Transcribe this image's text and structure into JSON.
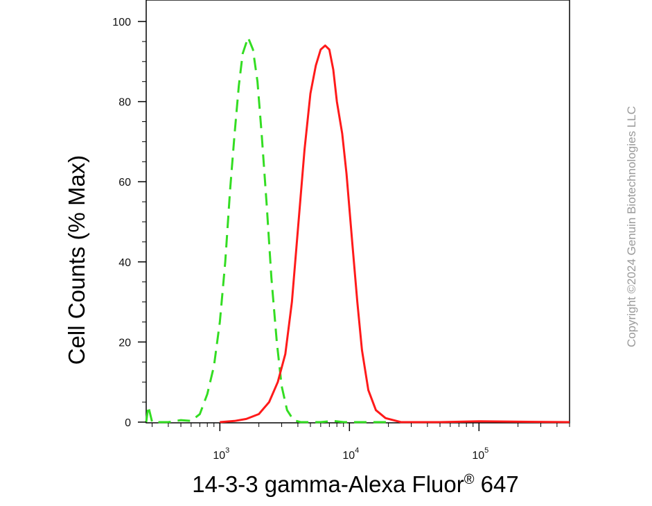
{
  "chart_data": {
    "type": "line",
    "title": "",
    "ylabel": "Cell Counts (% Max)",
    "xlabel_main": "14-3-3 gamma-Alexa Fluor",
    "xlabel_sup": "®",
    "xlabel_tail": " 647",
    "x_scale": "log",
    "xlim": [
      270,
      500000
    ],
    "ylim": [
      0,
      105
    ],
    "y_ticks": [
      0,
      20,
      40,
      60,
      80,
      100
    ],
    "x_ticks": [
      {
        "value": 1000,
        "base": "10",
        "exp": "3"
      },
      {
        "value": 10000,
        "base": "10",
        "exp": "4"
      },
      {
        "value": 100000,
        "base": "10",
        "exp": "5"
      }
    ],
    "grid": false,
    "legend": "none",
    "series": [
      {
        "color": "#33dd22",
        "dash": true,
        "points": [
          [
            270,
            0
          ],
          [
            280,
            4
          ],
          [
            300,
            0
          ],
          [
            400,
            0
          ],
          [
            500,
            0.5
          ],
          [
            600,
            0.3
          ],
          [
            700,
            2
          ],
          [
            800,
            7
          ],
          [
            900,
            14
          ],
          [
            1000,
            25
          ],
          [
            1100,
            40
          ],
          [
            1200,
            58
          ],
          [
            1300,
            72
          ],
          [
            1400,
            84
          ],
          [
            1500,
            92
          ],
          [
            1650,
            96
          ],
          [
            1800,
            93
          ],
          [
            1950,
            85
          ],
          [
            2100,
            72
          ],
          [
            2300,
            54
          ],
          [
            2500,
            36
          ],
          [
            2750,
            20
          ],
          [
            3000,
            9
          ],
          [
            3300,
            3
          ],
          [
            3700,
            0.5
          ],
          [
            4200,
            0
          ],
          [
            6000,
            0
          ],
          [
            7500,
            0.3
          ],
          [
            9000,
            0
          ],
          [
            20000,
            0
          ]
        ]
      },
      {
        "color": "#ff1a1a",
        "dash": false,
        "points": [
          [
            1000,
            0
          ],
          [
            1300,
            0.3
          ],
          [
            1600,
            0.8
          ],
          [
            2000,
            2
          ],
          [
            2400,
            5
          ],
          [
            2800,
            10
          ],
          [
            3200,
            17
          ],
          [
            3600,
            30
          ],
          [
            4000,
            48
          ],
          [
            4500,
            68
          ],
          [
            5000,
            82
          ],
          [
            5500,
            89
          ],
          [
            6000,
            93
          ],
          [
            6500,
            94
          ],
          [
            7000,
            93
          ],
          [
            7500,
            88
          ],
          [
            8000,
            80
          ],
          [
            8800,
            72
          ],
          [
            9500,
            62
          ],
          [
            10500,
            45
          ],
          [
            11500,
            30
          ],
          [
            12500,
            18
          ],
          [
            14000,
            8
          ],
          [
            16000,
            3
          ],
          [
            19000,
            1
          ],
          [
            25000,
            0
          ],
          [
            50000,
            0
          ],
          [
            100000,
            0.2
          ],
          [
            500000,
            0
          ]
        ]
      }
    ]
  },
  "watermark": "Copyright ©2024 Genuin Biotechnologies LLC"
}
